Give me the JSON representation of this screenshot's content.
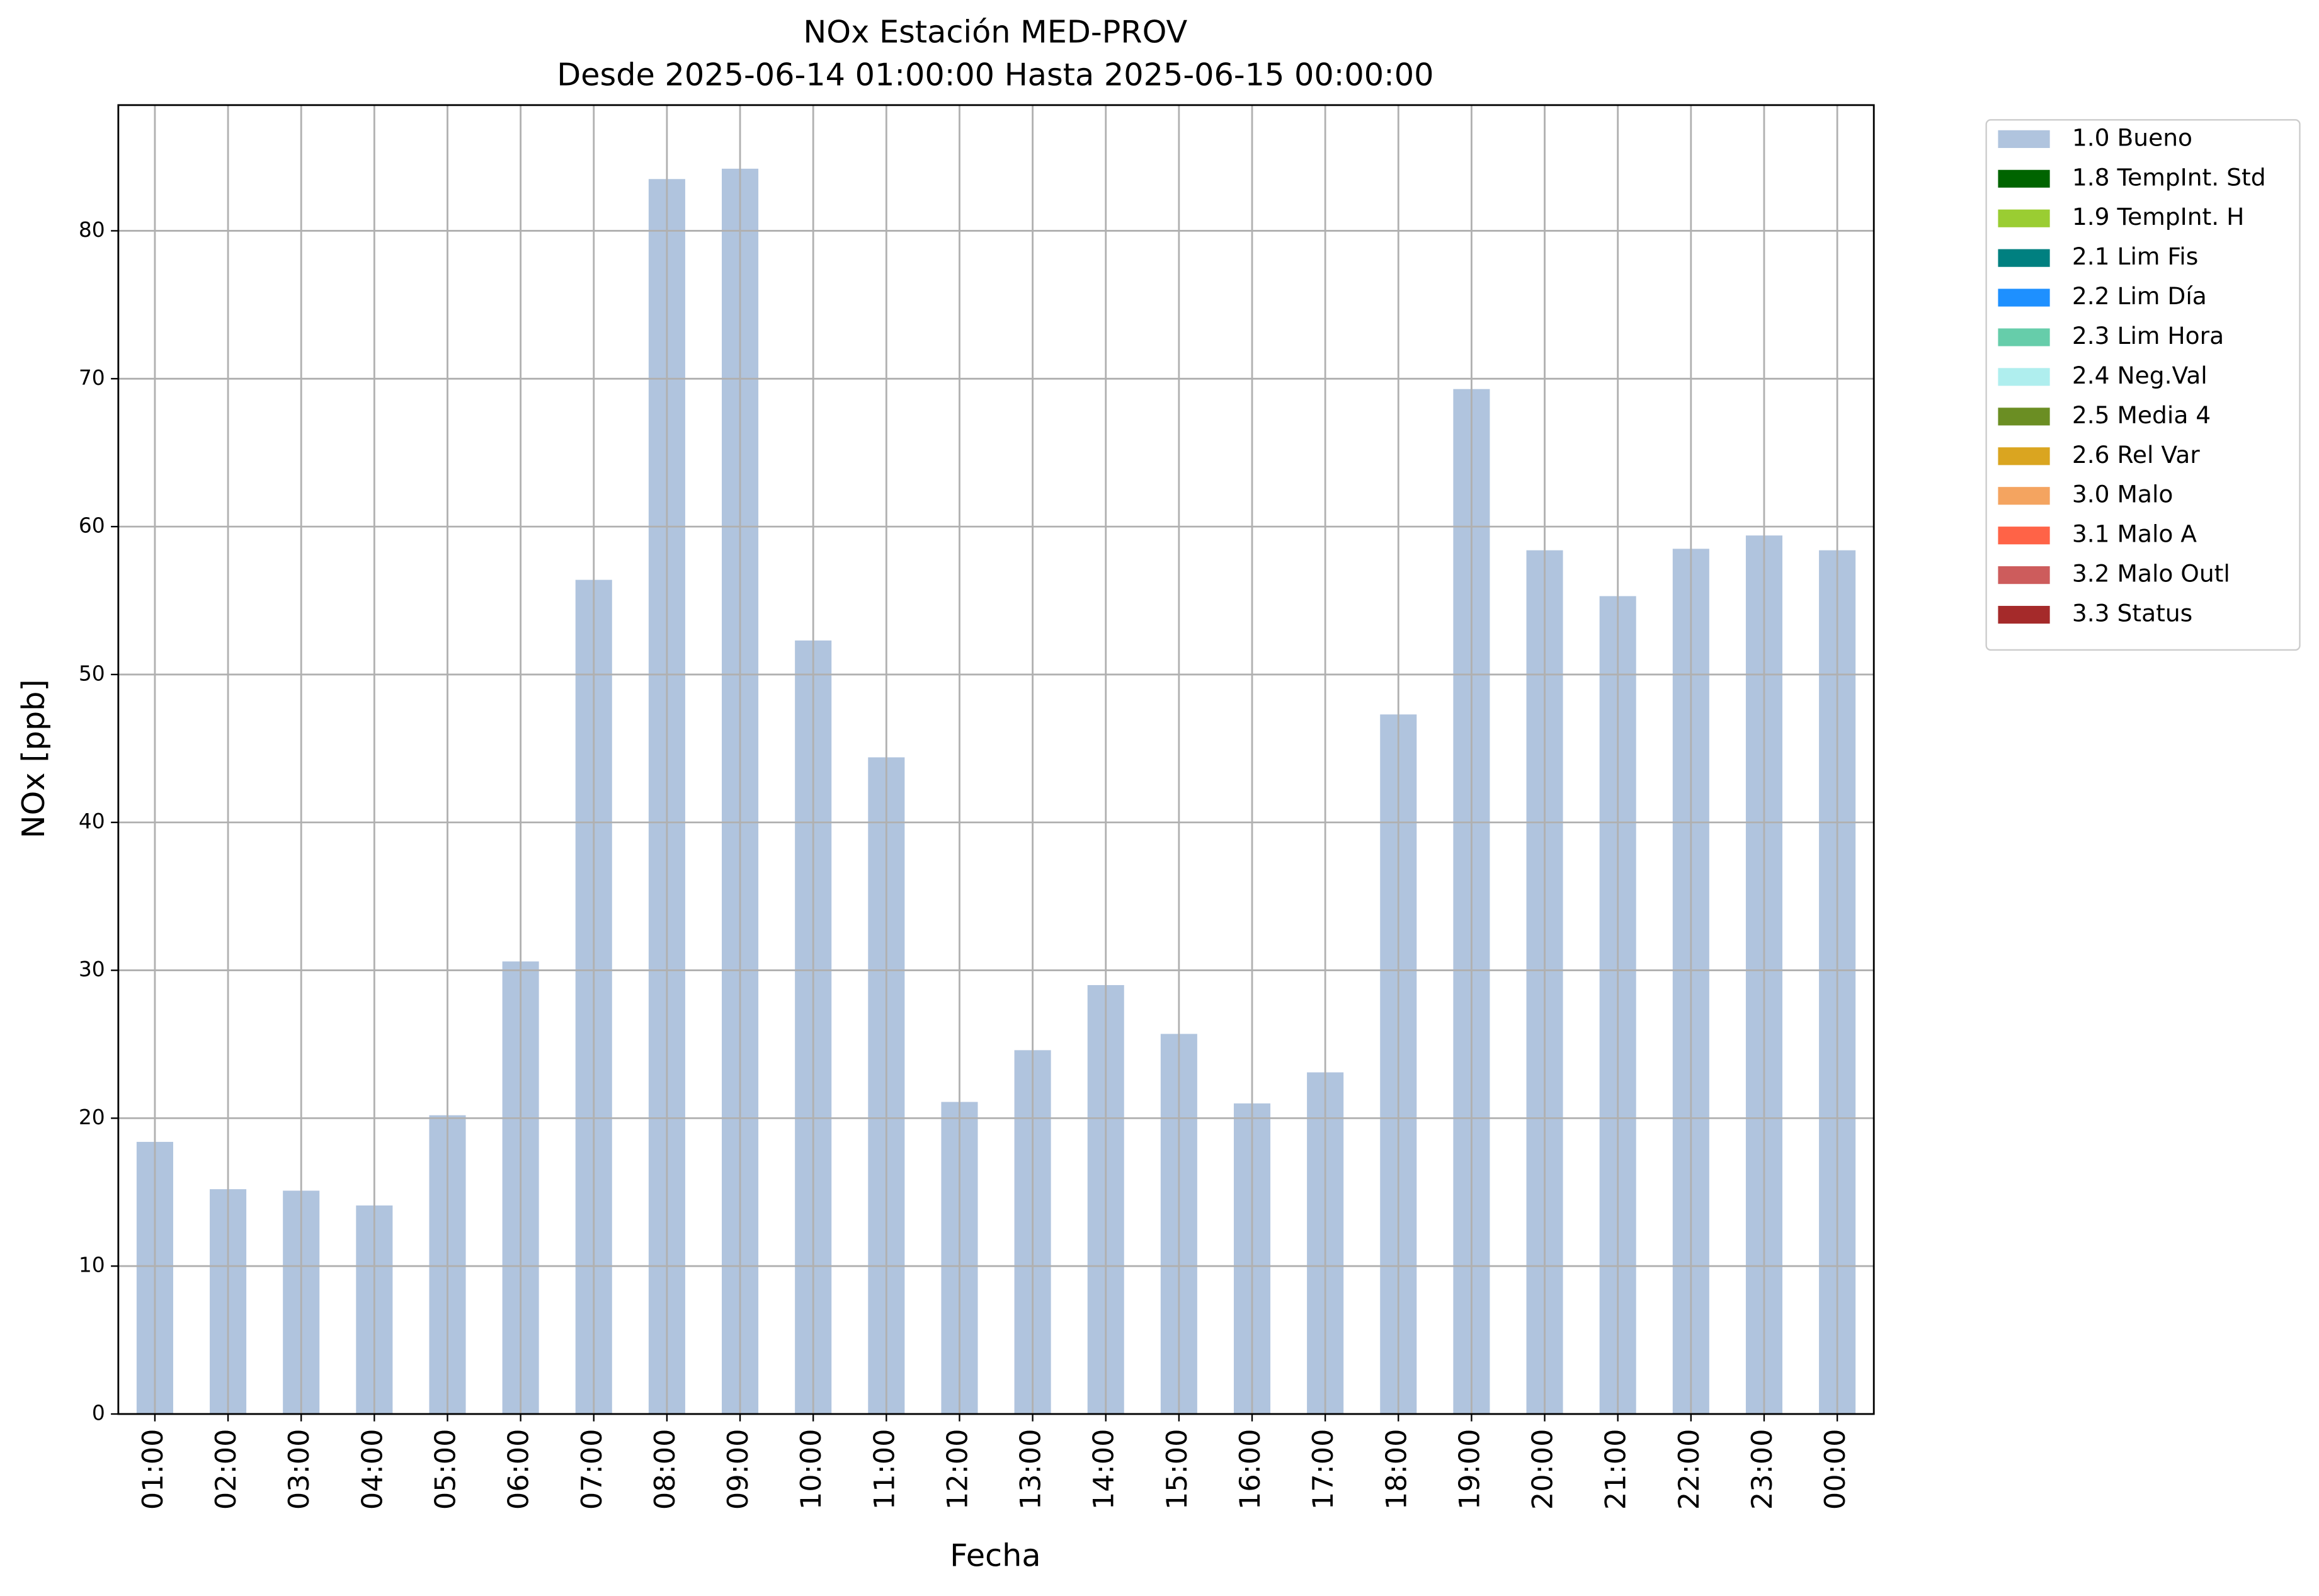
{
  "chart_data": {
    "type": "bar",
    "title": "NOx Estación MED-PROV",
    "subtitle": "Desde 2025-06-14 01:00:00 Hasta 2025-06-15 00:00:00",
    "x_label": "Fecha",
    "y_label": "NOx [ppb]",
    "categories": [
      "01:00",
      "02:00",
      "03:00",
      "04:00",
      "05:00",
      "06:00",
      "07:00",
      "08:00",
      "09:00",
      "10:00",
      "11:00",
      "12:00",
      "13:00",
      "14:00",
      "15:00",
      "16:00",
      "17:00",
      "18:00",
      "19:00",
      "20:00",
      "21:00",
      "22:00",
      "23:00",
      "00:00"
    ],
    "values": [
      18.4,
      15.2,
      15.1,
      14.1,
      20.2,
      30.6,
      56.4,
      83.5,
      84.2,
      52.3,
      44.4,
      21.1,
      24.6,
      29.0,
      25.7,
      21.0,
      23.1,
      47.3,
      69.3,
      58.4,
      55.3,
      58.5,
      59.4,
      58.4
    ],
    "color": "#b0c4de",
    "ylim": [
      0,
      88.5
    ],
    "yticks": [
      0,
      10,
      20,
      30,
      40,
      50,
      60,
      70,
      80
    ],
    "grid": true,
    "legend_position": "outside right",
    "legend": [
      {
        "name": "1.0 Bueno",
        "color": "#b0c4de"
      },
      {
        "name": "1.8 TempInt. Std",
        "color": "#006400"
      },
      {
        "name": "1.9 TempInt. H",
        "color": "#9acd32"
      },
      {
        "name": "2.1 Lim Fis",
        "color": "#008080"
      },
      {
        "name": "2.2 Lim Día",
        "color": "#1e90ff"
      },
      {
        "name": "2.3 Lim Hora",
        "color": "#66cdaa"
      },
      {
        "name": "2.4 Neg.Val",
        "color": "#afeeee"
      },
      {
        "name": "2.5 Media 4",
        "color": "#6b8e23"
      },
      {
        "name": "2.6 Rel Var",
        "color": "#daa520"
      },
      {
        "name": "3.0 Malo",
        "color": "#f4a460"
      },
      {
        "name": "3.1 Malo A",
        "color": "#ff6347"
      },
      {
        "name": "3.2 Malo Outl",
        "color": "#cd5c5c"
      },
      {
        "name": "3.3 Status",
        "color": "#a52a2a"
      }
    ]
  }
}
